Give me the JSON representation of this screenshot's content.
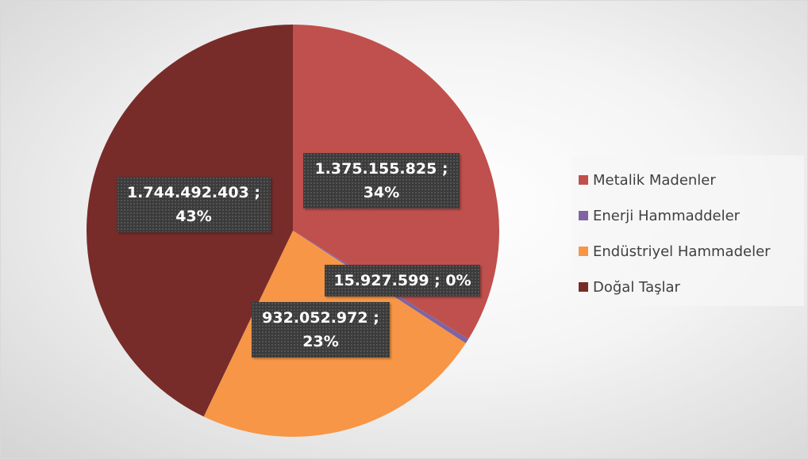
{
  "chart_data": {
    "type": "pie",
    "categories": [
      "Metalik Madenler",
      "Enerji Hammaddeler",
      "Endüstriyel Hammadeler",
      "Doğal Taşlar"
    ],
    "values": [
      1375155825,
      15927599,
      932052972,
      1744492403
    ],
    "value_labels": [
      "1.375.155.825 ; 34%",
      "15.927.599 ; 0%",
      "932.052.972 ; 23%",
      "1.744.492.403 ; 43%"
    ],
    "colors": [
      "#c0504d",
      "#8064a2",
      "#f79646",
      "#772c2a"
    ],
    "legend": "right"
  }
}
